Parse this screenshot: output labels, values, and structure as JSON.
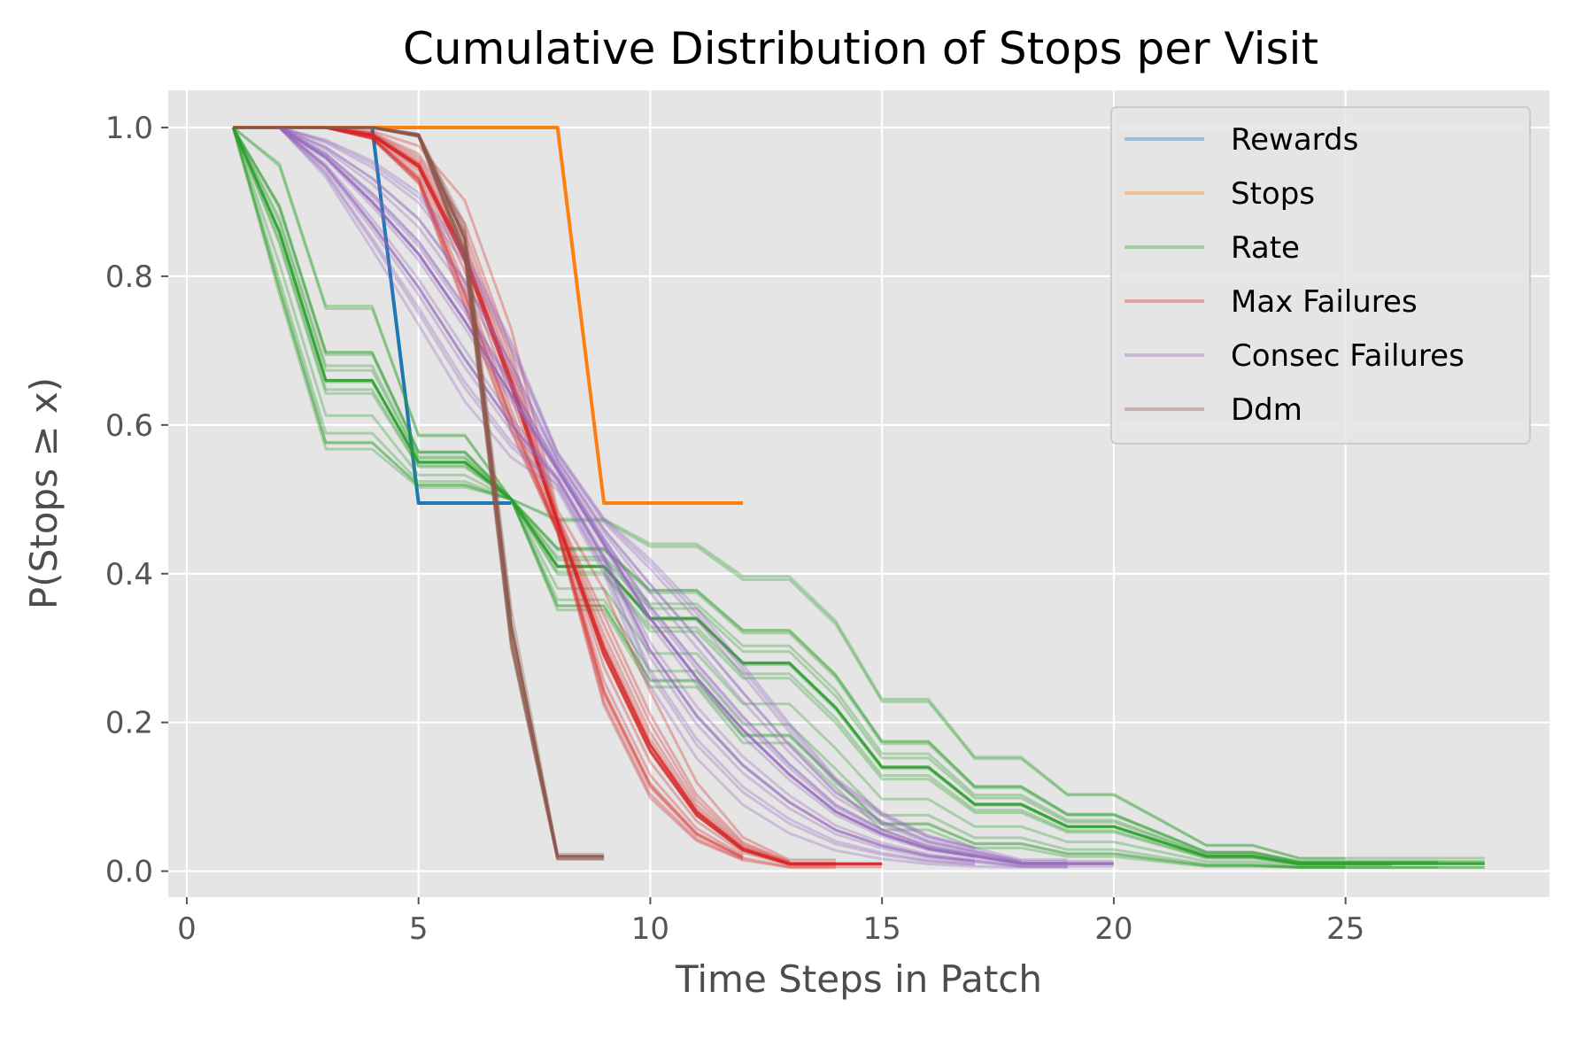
{
  "chart_data": {
    "type": "line",
    "title": "Cumulative Distribution of Stops per Visit",
    "xlabel": "Time Steps in Patch",
    "ylabel": "P(Stops ≥ x)",
    "xlim": [
      -0.4,
      29.4
    ],
    "ylim": [
      -0.035,
      1.05
    ],
    "xticks": [
      0,
      5,
      10,
      15,
      20,
      25
    ],
    "yticks": [
      0.0,
      0.2,
      0.4,
      0.6,
      0.8,
      1.0
    ],
    "xtick_labels": [
      "0",
      "5",
      "10",
      "15",
      "20",
      "25"
    ],
    "ytick_labels": [
      "0.0",
      "0.2",
      "0.4",
      "0.6",
      "0.8",
      "1.0"
    ],
    "grid": true,
    "legend_position": "top-right",
    "colors": {
      "background": "#e5e5e5",
      "grid": "#ffffff",
      "rewards": "#1f77b4",
      "stops": "#ff7f0e",
      "rate": "#2ca02c",
      "max_failures": "#d62728",
      "consec_failures": "#9467bd",
      "ddm": "#8c564b"
    },
    "series": [
      {
        "name": "Rewards",
        "color": "#1f77b4",
        "x": [
          1,
          2,
          3,
          4,
          5,
          6,
          7
        ],
        "y": [
          1.0,
          1.0,
          1.0,
          1.0,
          0.495,
          0.495,
          0.495
        ]
      },
      {
        "name": "Stops",
        "color": "#ff7f0e",
        "x": [
          1,
          2,
          3,
          4,
          5,
          6,
          7,
          8,
          9,
          10,
          11,
          12
        ],
        "y": [
          1.0,
          1.0,
          1.0,
          1.0,
          1.0,
          1.0,
          1.0,
          1.0,
          0.495,
          0.495,
          0.495,
          0.495
        ]
      },
      {
        "name": "Rate",
        "color": "#2ca02c",
        "x": [
          1,
          2,
          3,
          4,
          5,
          6,
          7,
          8,
          9,
          10,
          11,
          12,
          13,
          14,
          15,
          16,
          17,
          18,
          19,
          20,
          21,
          22,
          23,
          24,
          25,
          26,
          27,
          28
        ],
        "y": [
          1.0,
          0.86,
          0.66,
          0.66,
          0.55,
          0.55,
          0.5,
          0.41,
          0.41,
          0.34,
          0.34,
          0.28,
          0.28,
          0.22,
          0.14,
          0.14,
          0.09,
          0.09,
          0.06,
          0.06,
          0.04,
          0.02,
          0.02,
          0.01,
          0.01,
          0.01,
          0.01,
          0.01
        ]
      },
      {
        "name": "Max Failures",
        "color": "#d62728",
        "x": [
          1,
          2,
          3,
          4,
          5,
          6,
          7,
          8,
          9,
          10,
          11,
          12,
          13,
          14,
          15
        ],
        "y": [
          1.0,
          1.0,
          1.0,
          0.99,
          0.95,
          0.83,
          0.66,
          0.47,
          0.3,
          0.17,
          0.08,
          0.03,
          0.01,
          0.01,
          0.01
        ]
      },
      {
        "name": "Consec Failures",
        "color": "#9467bd",
        "x": [
          1,
          2,
          3,
          4,
          5,
          6,
          7,
          8,
          9,
          10,
          11,
          12,
          13,
          14,
          15,
          16,
          17,
          18,
          19,
          20
        ],
        "y": [
          1.0,
          1.0,
          0.96,
          0.9,
          0.83,
          0.74,
          0.64,
          0.54,
          0.44,
          0.34,
          0.26,
          0.19,
          0.13,
          0.08,
          0.05,
          0.03,
          0.02,
          0.01,
          0.01,
          0.01
        ]
      },
      {
        "name": "Ddm",
        "color": "#8c564b",
        "x": [
          1,
          2,
          3,
          4,
          5,
          6,
          7,
          8,
          9
        ],
        "y": [
          1.0,
          1.0,
          1.0,
          1.0,
          0.99,
          0.85,
          0.33,
          0.02,
          0.02
        ]
      }
    ]
  }
}
